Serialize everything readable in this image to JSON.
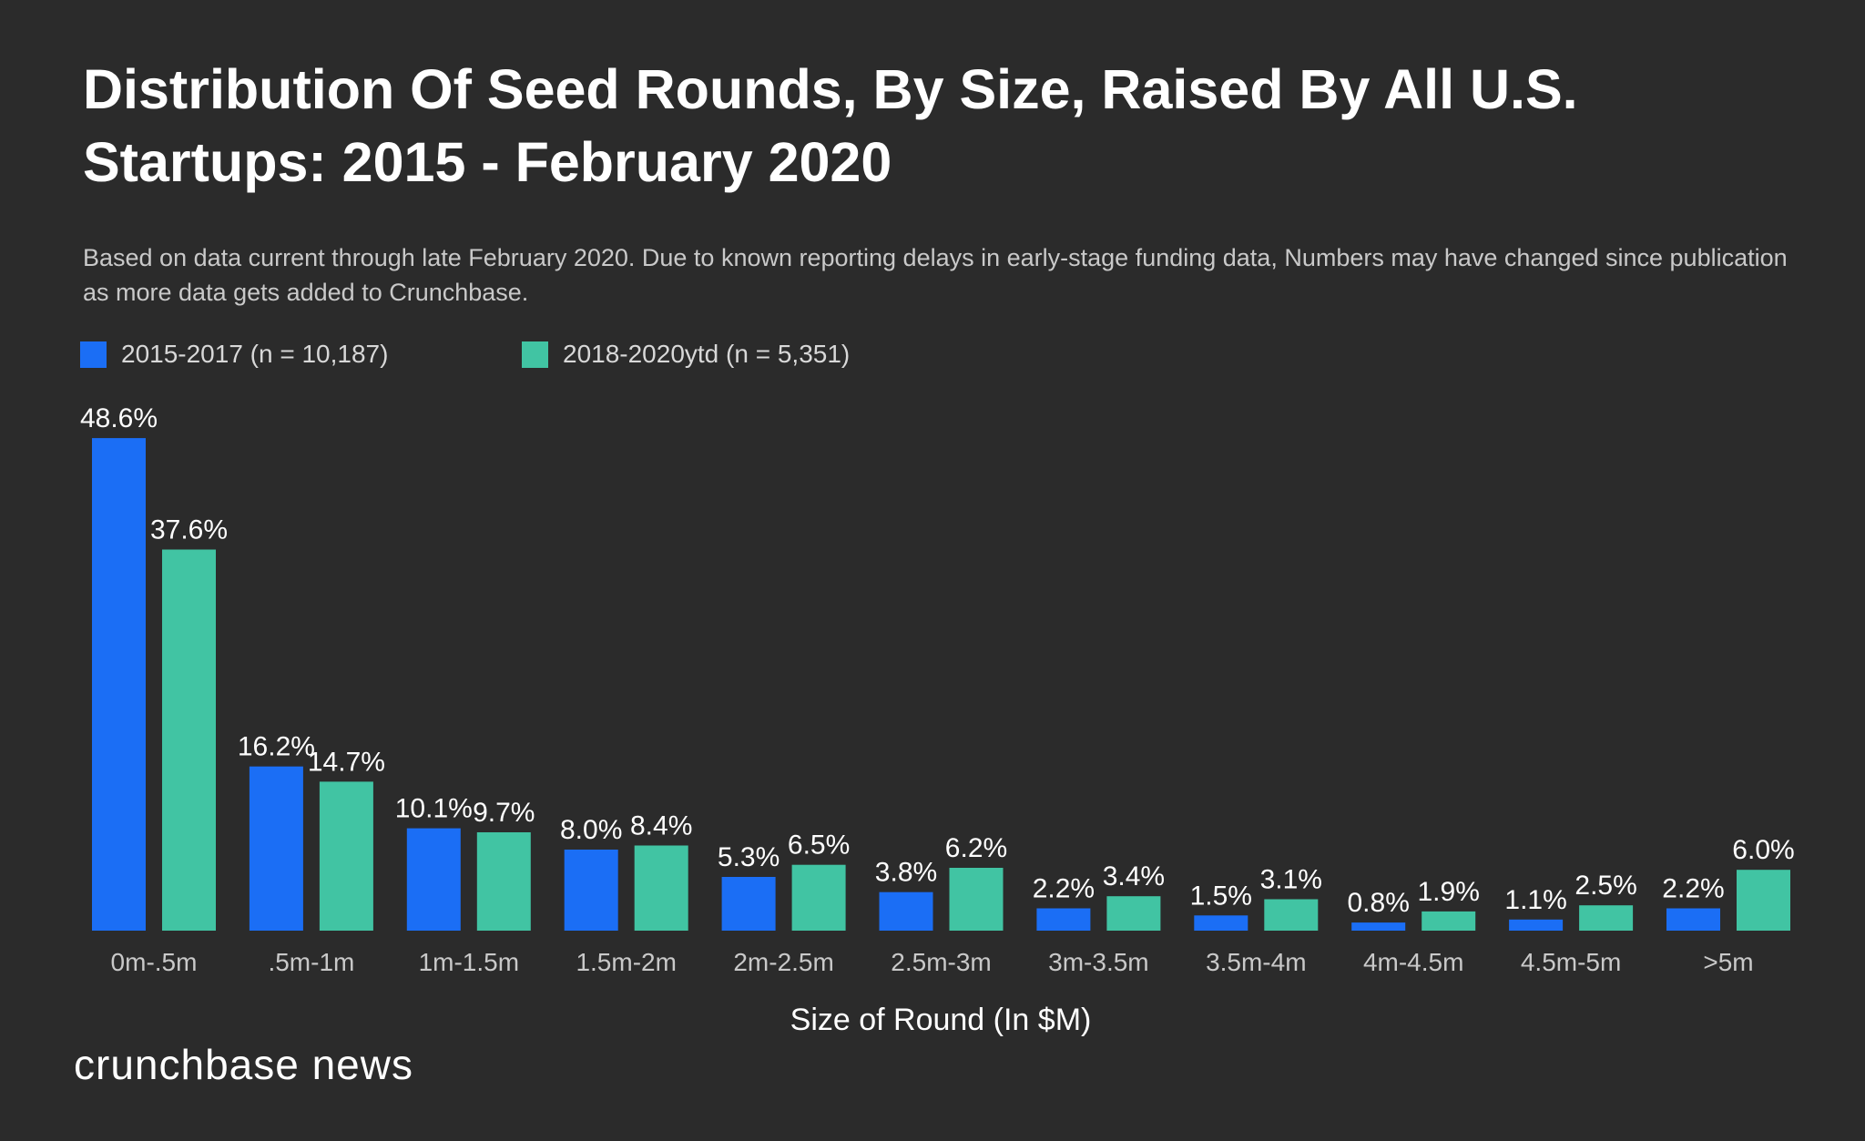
{
  "title": "Distribution Of Seed Rounds, By Size, Raised By All U.S. Startups: 2015 - February 2020",
  "subtitle": "Based on data current through late February 2020. Due to known reporting delays in early-stage funding data, Numbers may have changed since publication as more data gets added to Crunchbase.",
  "brand": "crunchbase news",
  "colors": {
    "background": "#2b2b2b",
    "series_1": "#1b6ef5",
    "series_2": "#41c4a3",
    "text": "#ffffff",
    "muted_text": "#c9c9c9"
  },
  "chart_data": {
    "type": "bar",
    "title": "Distribution Of Seed Rounds, By Size, Raised By All U.S. Startups: 2015 - February 2020",
    "xlabel": "Size of Round (In $M)",
    "ylabel": "",
    "ylim": [
      0,
      50
    ],
    "grid": false,
    "legend": "top-left",
    "categories": [
      "0m-.5m",
      ".5m-1m",
      "1m-1.5m",
      "1.5m-2m",
      "2m-2.5m",
      "2.5m-3m",
      "3m-3.5m",
      "3.5m-4m",
      "4m-4.5m",
      "4.5m-5m",
      ">5m"
    ],
    "series": [
      {
        "name": "2015-2017 (n = 10,187)",
        "color": "#1b6ef5",
        "values": [
          48.6,
          16.2,
          10.1,
          8.0,
          5.3,
          3.8,
          2.2,
          1.5,
          0.8,
          1.1,
          2.2
        ],
        "labels": [
          "48.6%",
          "16.2%",
          "10.1%",
          "8.0%",
          "5.3%",
          "3.8%",
          "2.2%",
          "1.5%",
          "0.8%",
          "1.1%",
          "2.2%"
        ]
      },
      {
        "name": "2018-2020ytd (n = 5,351)",
        "color": "#41c4a3",
        "values": [
          37.6,
          14.7,
          9.7,
          8.4,
          6.5,
          6.2,
          3.4,
          3.1,
          1.9,
          2.5,
          6.0
        ],
        "labels": [
          "37.6%",
          "14.7%",
          "9.7%",
          "8.4%",
          "6.5%",
          "6.2%",
          "3.4%",
          "3.1%",
          "1.9%",
          "2.5%",
          "6.0%"
        ]
      }
    ]
  }
}
